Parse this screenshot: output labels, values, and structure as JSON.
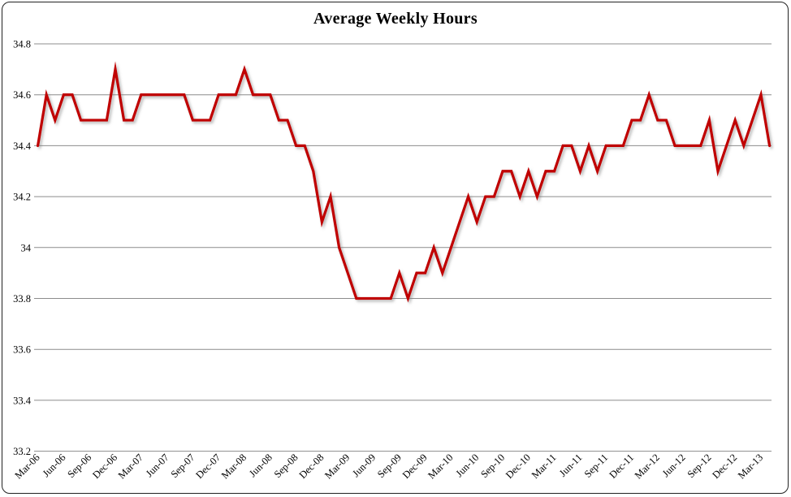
{
  "window": {
    "background_color": "#FFFFFF",
    "frame_border_color": "#222222"
  },
  "chart_data": {
    "type": "line",
    "title": "Average Weekly Hours",
    "xlabel": "",
    "ylabel": "",
    "ylim": [
      33.2,
      34.8
    ],
    "grid": "horizontal",
    "legend": "none",
    "gridline_color": "#8C8C8C",
    "y_tick_values": [
      34.8,
      34.6,
      34.4,
      34.2,
      34.0,
      33.8,
      33.6,
      33.4,
      33.2
    ],
    "y_tick_labels": [
      "34.8",
      "34.6",
      "34.4",
      "34.2",
      "34",
      "33.8",
      "33.6",
      "33.4",
      "33.2"
    ],
    "x_tick_every_n_months": 3,
    "x_tick_labels": [
      "Mar-06",
      "Jun-06",
      "Sep-06",
      "Dec-06",
      "Mar-07",
      "Jun-07",
      "Sep-07",
      "Dec-07",
      "Mar-08",
      "Jun-08",
      "Sep-08",
      "Dec-08",
      "Mar-09",
      "Jun-09",
      "Sep-09",
      "Dec-09",
      "Mar-10",
      "Jun-10",
      "Sep-10",
      "Dec-10",
      "Mar-11",
      "Jun-11",
      "Sep-11",
      "Dec-11",
      "Mar-12",
      "Jun-12",
      "Sep-12",
      "Dec-12",
      "Mar-13"
    ],
    "series": [
      {
        "name": "Average Weekly Hours",
        "color": "#C00000",
        "x": [
          "Mar-06",
          "Apr-06",
          "May-06",
          "Jun-06",
          "Jul-06",
          "Aug-06",
          "Sep-06",
          "Oct-06",
          "Nov-06",
          "Dec-06",
          "Jan-07",
          "Feb-07",
          "Mar-07",
          "Apr-07",
          "May-07",
          "Jun-07",
          "Jul-07",
          "Aug-07",
          "Sep-07",
          "Oct-07",
          "Nov-07",
          "Dec-07",
          "Jan-08",
          "Feb-08",
          "Mar-08",
          "Apr-08",
          "May-08",
          "Jun-08",
          "Jul-08",
          "Aug-08",
          "Sep-08",
          "Oct-08",
          "Nov-08",
          "Dec-08",
          "Jan-09",
          "Feb-09",
          "Mar-09",
          "Apr-09",
          "May-09",
          "Jun-09",
          "Jul-09",
          "Aug-09",
          "Sep-09",
          "Oct-09",
          "Nov-09",
          "Dec-09",
          "Jan-10",
          "Feb-10",
          "Mar-10",
          "Apr-10",
          "May-10",
          "Jun-10",
          "Jul-10",
          "Aug-10",
          "Sep-10",
          "Oct-10",
          "Nov-10",
          "Dec-10",
          "Jan-11",
          "Feb-11",
          "Mar-11",
          "Apr-11",
          "May-11",
          "Jun-11",
          "Jul-11",
          "Aug-11",
          "Sep-11",
          "Oct-11",
          "Nov-11",
          "Dec-11",
          "Jan-12",
          "Feb-12",
          "Mar-12",
          "Apr-12",
          "May-12",
          "Jun-12",
          "Jul-12",
          "Aug-12",
          "Sep-12",
          "Oct-12",
          "Nov-12",
          "Dec-12",
          "Jan-13",
          "Feb-13",
          "Mar-13",
          "Apr-13"
        ],
        "values": [
          34.4,
          34.6,
          34.5,
          34.6,
          34.6,
          34.5,
          34.5,
          34.5,
          34.5,
          34.7,
          34.5,
          34.5,
          34.6,
          34.6,
          34.6,
          34.6,
          34.6,
          34.6,
          34.5,
          34.5,
          34.5,
          34.6,
          34.6,
          34.6,
          34.7,
          34.6,
          34.6,
          34.6,
          34.5,
          34.5,
          34.4,
          34.4,
          34.3,
          34.1,
          34.2,
          34.0,
          33.9,
          33.8,
          33.8,
          33.8,
          33.8,
          33.8,
          33.9,
          33.8,
          33.9,
          33.9,
          34.0,
          33.9,
          34.0,
          34.1,
          34.2,
          34.1,
          34.2,
          34.2,
          34.3,
          34.3,
          34.2,
          34.3,
          34.2,
          34.3,
          34.3,
          34.4,
          34.4,
          34.3,
          34.4,
          34.3,
          34.4,
          34.4,
          34.4,
          34.5,
          34.5,
          34.6,
          34.5,
          34.5,
          34.4,
          34.4,
          34.4,
          34.4,
          34.5,
          34.3,
          34.4,
          34.5,
          34.4,
          34.5,
          34.6,
          34.4
        ]
      }
    ]
  }
}
